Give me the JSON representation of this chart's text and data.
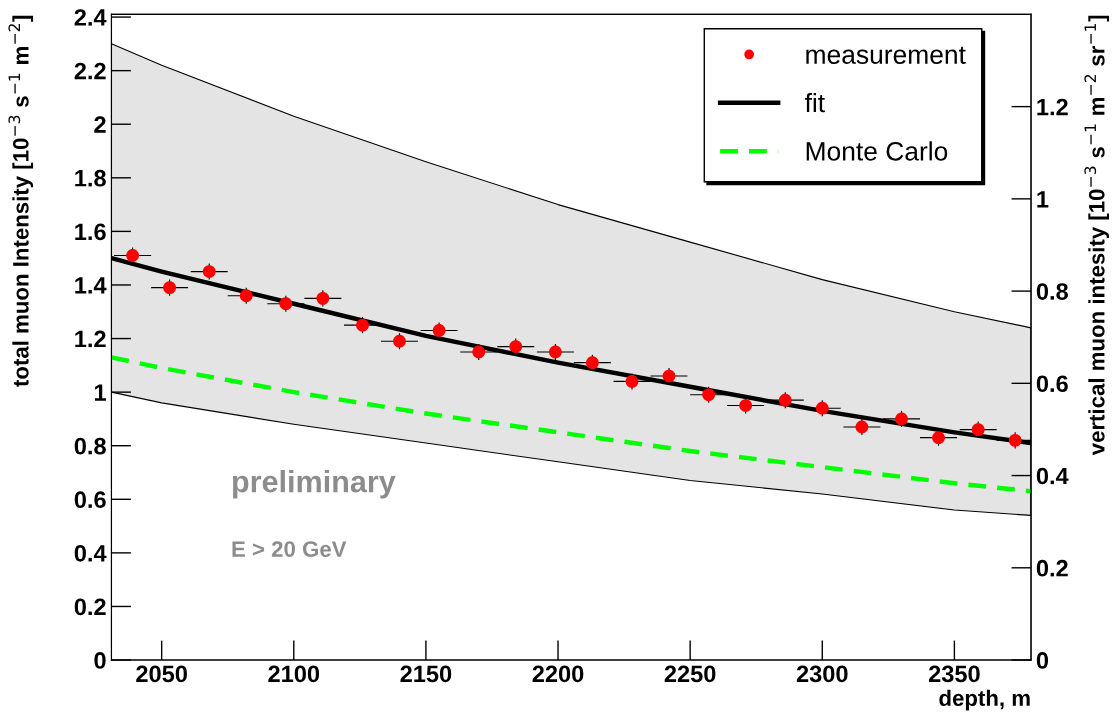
{
  "chart_data": {
    "type": "scatter",
    "xlabel": "depth, m",
    "ylabel": "total muon Intensity [10$^{−3}$ s$^{−1}$ m$^{−2}$]",
    "y2label": "vertical muon intesity [10$^{−3}$ s$^{−1}$ m$^{−2}$ sr$^{−1}$]",
    "annotations": [
      "preliminary",
      "E > 20 GeV"
    ],
    "xlim": [
      2031,
      2379
    ],
    "xticks": [
      2050,
      2100,
      2150,
      2200,
      2250,
      2300,
      2350
    ],
    "ylim": [
      0,
      2.41
    ],
    "yticks": [
      0,
      0.2,
      0.4,
      0.6,
      0.8,
      1,
      1.2,
      1.4,
      1.6,
      1.8,
      2,
      2.2,
      2.4
    ],
    "y2lim": [
      0,
      1.4
    ],
    "y2ticks": [
      0,
      0.2,
      0.4,
      0.6,
      0.8,
      1,
      1.2
    ],
    "grid": false,
    "legend": "top right",
    "series": [
      {
        "name": "measurement",
        "color": "#ff0000",
        "marker": "circle",
        "x": [
          2039,
          2053,
          2068,
          2082,
          2097,
          2111,
          2126,
          2140,
          2155,
          2170,
          2184,
          2199,
          2213,
          2228,
          2242,
          2257,
          2271,
          2286,
          2300,
          2315,
          2330,
          2344,
          2359,
          2373
        ],
        "values": [
          1.51,
          1.39,
          1.45,
          1.36,
          1.33,
          1.35,
          1.25,
          1.19,
          1.23,
          1.15,
          1.17,
          1.15,
          1.11,
          1.04,
          1.06,
          0.99,
          0.95,
          0.97,
          0.94,
          0.87,
          0.9,
          0.83,
          0.86,
          0.82
        ],
        "errors": [
          0.03,
          0.03,
          0.03,
          0.03,
          0.03,
          0.03,
          0.03,
          0.03,
          0.03,
          0.03,
          0.03,
          0.03,
          0.03,
          0.03,
          0.03,
          0.03,
          0.03,
          0.03,
          0.03,
          0.03,
          0.03,
          0.03,
          0.03,
          0.03
        ],
        "xerrors": [
          7,
          7,
          7,
          7,
          7,
          7,
          7,
          7,
          7,
          7,
          7,
          7,
          7,
          7,
          7,
          7,
          7,
          7,
          7,
          7,
          7,
          7,
          7,
          7
        ]
      },
      {
        "name": "fit",
        "type": "line",
        "color": "#000000",
        "line_style": "solid",
        "x": [
          2031,
          2050,
          2100,
          2150,
          2200,
          2250,
          2300,
          2350,
          2379
        ],
        "values": [
          1.5,
          1.45,
          1.33,
          1.21,
          1.11,
          1.02,
          0.93,
          0.85,
          0.81
        ],
        "lower": [
          1.0,
          0.96,
          0.88,
          0.81,
          0.74,
          0.67,
          0.62,
          0.56,
          0.54
        ],
        "upper": [
          2.3,
          2.22,
          2.03,
          1.86,
          1.7,
          1.56,
          1.42,
          1.3,
          1.24
        ]
      },
      {
        "name": "Monte Carlo",
        "type": "line",
        "color": "#00ff00",
        "line_style": "dashed",
        "x": [
          2031,
          2050,
          2100,
          2150,
          2200,
          2250,
          2300,
          2350,
          2379
        ],
        "values": [
          1.13,
          1.09,
          1.0,
          0.92,
          0.85,
          0.78,
          0.72,
          0.66,
          0.63
        ]
      }
    ]
  }
}
